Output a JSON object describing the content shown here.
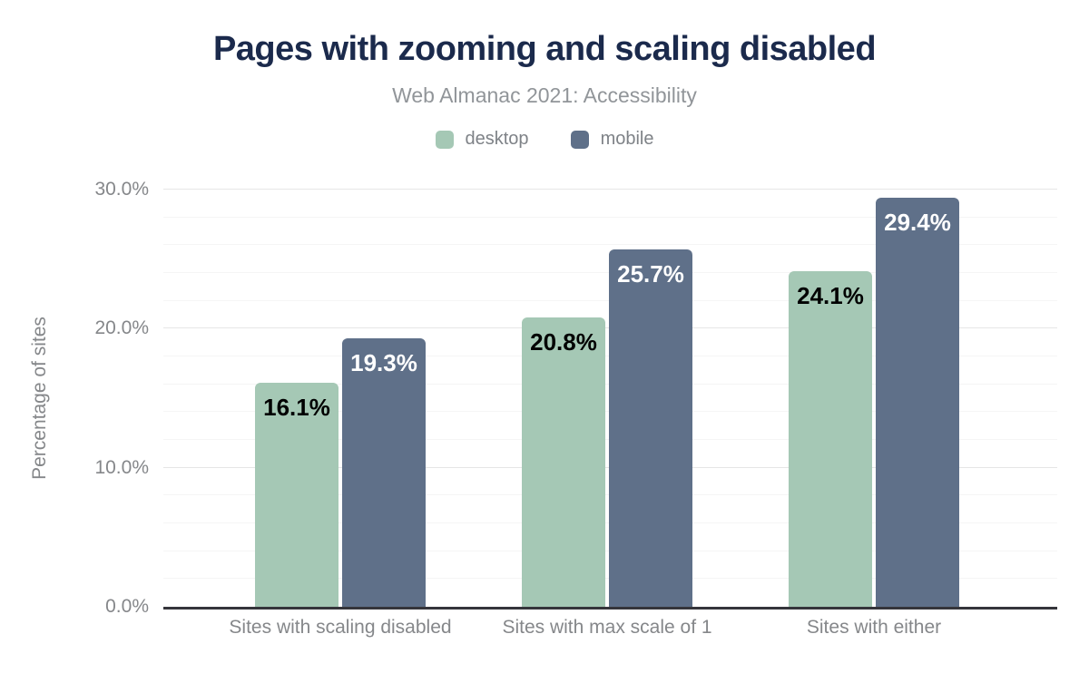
{
  "header": {
    "title": "Pages with zooming and scaling disabled",
    "subtitle": "Web Almanac 2021: Accessibility"
  },
  "chart_data": {
    "type": "bar",
    "title": "Pages with zooming and scaling disabled",
    "subtitle": "Web Almanac 2021: Accessibility",
    "categories": [
      "Sites with scaling disabled",
      "Sites with max scale of 1",
      "Sites with either"
    ],
    "series": [
      {
        "name": "desktop",
        "color": "#a5c8b5",
        "label_color": "#000000",
        "values": [
          16.1,
          20.8,
          24.1
        ],
        "labels": [
          "16.1%",
          "20.8%",
          "24.1%"
        ]
      },
      {
        "name": "mobile",
        "color": "#5f7089",
        "label_color": "#ffffff",
        "values": [
          19.3,
          25.7,
          29.4
        ],
        "labels": [
          "19.3%",
          "25.7%",
          "29.4%"
        ]
      }
    ],
    "ylabel": "Percentage of sites",
    "ylim": [
      0,
      30
    ],
    "yticks": [
      {
        "value": 0,
        "label": "0.0%"
      },
      {
        "value": 10,
        "label": "10.0%"
      },
      {
        "value": 20,
        "label": "20.0%"
      },
      {
        "value": 30,
        "label": "30.0%"
      }
    ],
    "minor_grid_step": 2,
    "grid": true,
    "legend_position": "top"
  },
  "colors": {
    "title": "#1b2a4c",
    "subtitle": "#919599",
    "legend_text": "#7e8287",
    "axis_text": "#85878a",
    "axis_line": "#35353b",
    "major_grid": "#e6e6e6",
    "minor_grid": "#f5f5f5",
    "background": "#ffffff"
  }
}
